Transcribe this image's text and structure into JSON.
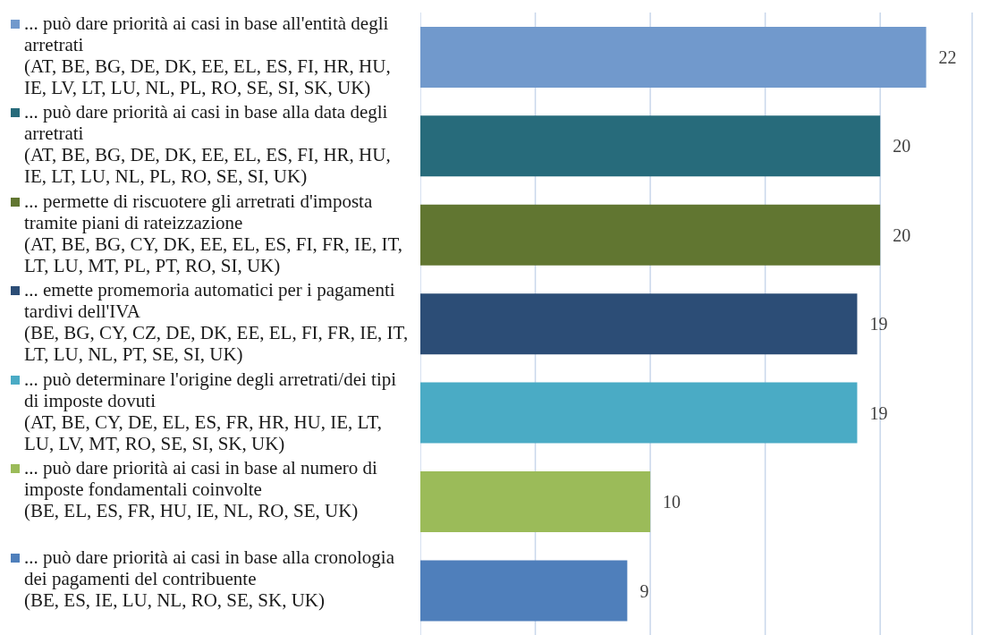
{
  "chart_data": {
    "type": "bar",
    "orientation": "horizontal",
    "stacked": true,
    "categories": [
      null,
      null,
      null,
      null,
      null,
      null,
      null
    ],
    "series": [
      {
        "name": "... può dare priorità ai casi in base all'entità degli arretrati\n(AT, BE, BG, DE, DK, EE, EL, ES, FI, HR, HU, IE, LV, LT, LU, NL, PL, RO, SE, SI, SK, UK)",
        "color": "#7199cc",
        "values": [
          22,
          null,
          null,
          null,
          null,
          null,
          null
        ]
      },
      {
        "name": "... può dare priorità ai casi in base alla data degli arretrati\n(AT, BE, BG, DE, DK, EE, EL, ES, FI, HR, HU, IE, LT, LU, NL, PL, RO, SE, SI, UK)",
        "color": "#276b7b",
        "values": [
          null,
          20,
          null,
          null,
          null,
          null,
          null
        ]
      },
      {
        "name": "... permette di riscuotere gli arretrati d'imposta tramite piani di rateizzazione\n(AT, BE, BG, CY, DK, EE, EL, ES, FI, FR, IE, IT, LT, LU, MT, PL, PT, RO, SI, UK)",
        "color": "#617631",
        "values": [
          null,
          null,
          20,
          null,
          null,
          null,
          null
        ]
      },
      {
        "name": "... emette promemoria automatici per i pagamenti tardivi dell'IVA\n(BE, BG, CY, CZ, DE, DK, EE, EL, FI, FR, IE, IT, LT, LU, NL, PT, SE, SI, UK)",
        "color": "#2c4d76",
        "values": [
          null,
          null,
          null,
          19,
          null,
          null,
          null
        ]
      },
      {
        "name": "... può determinare l'origine degli arretrati/dei tipi di imposte dovuti\n(AT, BE, CY, DE, EL, ES, FR, HR, HU, IE, LT, LU, LV, MT, RO, SE, SI, SK, UK)",
        "color": "#4aabc5",
        "values": [
          null,
          null,
          null,
          null,
          19,
          null,
          null
        ]
      },
      {
        "name": "... può dare priorità ai casi in base al numero di imposte fondamentali coinvolte\n(BE, EL, ES, FR, HU, IE, NL, RO, SE, UK)",
        "color": "#9bbb59",
        "values": [
          null,
          null,
          null,
          null,
          null,
          10,
          null
        ]
      },
      {
        "name": "... può dare priorità ai casi in base alla cronologia dei pagamenti del contribuente\n(BE, ES, IE, LU, NL, RO, SE, SK, UK)",
        "color": "#4f7fbb",
        "values": [
          null,
          null,
          null,
          null,
          null,
          null,
          9
        ]
      }
    ],
    "xlim": [
      0,
      24
    ],
    "xticks": [
      {
        "value": 0,
        "label": null
      },
      {
        "value": 5,
        "label": null
      },
      {
        "value": 10,
        "label": null
      },
      {
        "value": 15,
        "label": null
      },
      {
        "value": 20,
        "label": null
      }
    ],
    "tick_labels": false,
    "grid": "x",
    "legend": "left",
    "data_labels": true
  }
}
